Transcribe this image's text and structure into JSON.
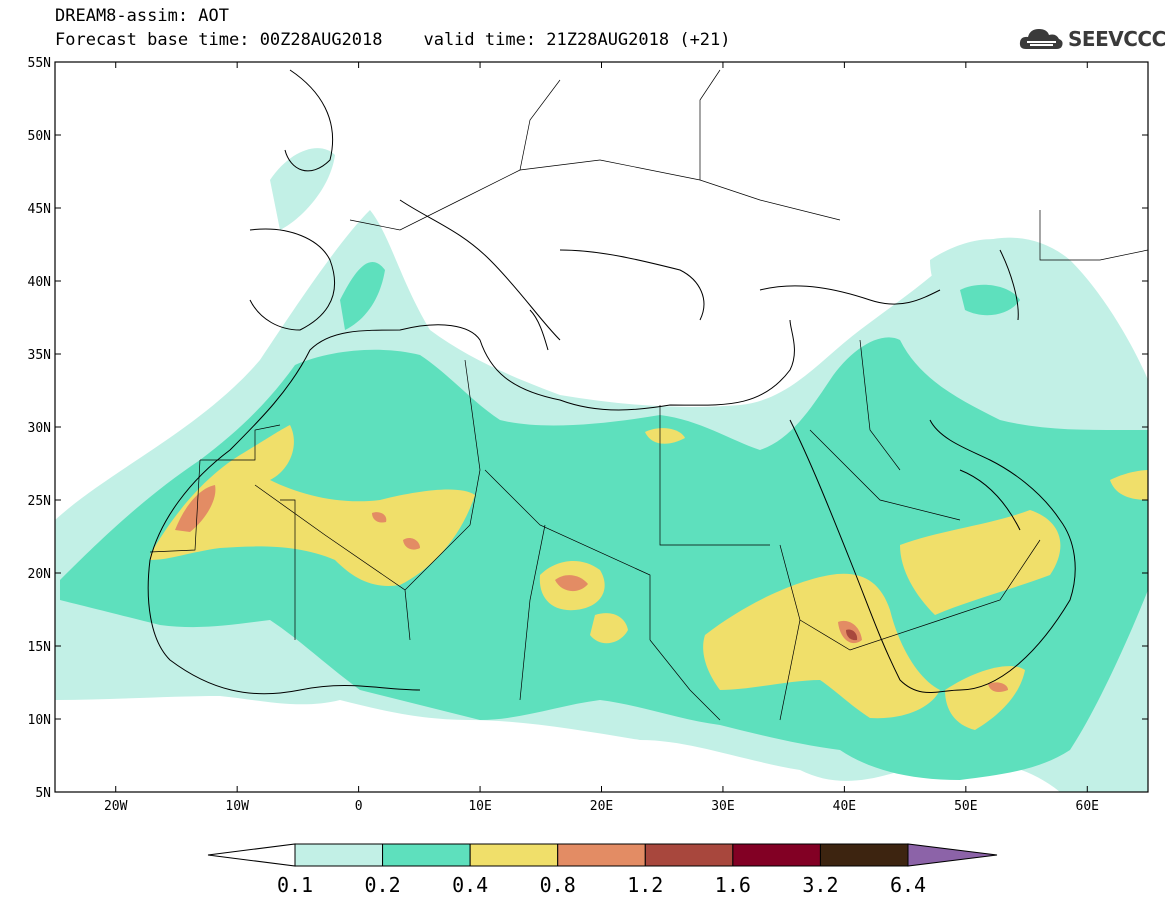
{
  "header": {
    "title": "DREAM8-assim: AOT",
    "forecast": "Forecast base time: 00Z28AUG2018",
    "valid": "valid time: 21Z28AUG2018 (+21)"
  },
  "logo": {
    "text": "SEEVCCC",
    "icon": "cloud-icon"
  },
  "map": {
    "lon_range": [
      -25,
      65
    ],
    "lat_range": [
      5,
      55
    ],
    "lon_ticks": [
      {
        "value": -20,
        "label": "20W"
      },
      {
        "value": -10,
        "label": "10W"
      },
      {
        "value": 0,
        "label": "0"
      },
      {
        "value": 10,
        "label": "10E"
      },
      {
        "value": 20,
        "label": "20E"
      },
      {
        "value": 30,
        "label": "30E"
      },
      {
        "value": 40,
        "label": "40E"
      },
      {
        "value": 50,
        "label": "50E"
      },
      {
        "value": 60,
        "label": "60E"
      }
    ],
    "lat_ticks": [
      {
        "value": 5,
        "label": "5N"
      },
      {
        "value": 10,
        "label": "10N"
      },
      {
        "value": 15,
        "label": "15N"
      },
      {
        "value": 20,
        "label": "20N"
      },
      {
        "value": 25,
        "label": "25N"
      },
      {
        "value": 30,
        "label": "30N"
      },
      {
        "value": 35,
        "label": "35N"
      },
      {
        "value": 40,
        "label": "40N"
      },
      {
        "value": 45,
        "label": "45N"
      },
      {
        "value": 50,
        "label": "50N"
      },
      {
        "value": 55,
        "label": "55N"
      }
    ]
  },
  "colorbar": {
    "colors": [
      "#c2f0e6",
      "#5ee0bd",
      "#f0df6a",
      "#e38c64",
      "#a8473d",
      "#820024",
      "#3d2410",
      "#8c63a8"
    ],
    "labels": [
      "0.1",
      "0.2",
      "0.4",
      "0.8",
      "1.2",
      "1.6",
      "3.2",
      "6.4"
    ]
  }
}
